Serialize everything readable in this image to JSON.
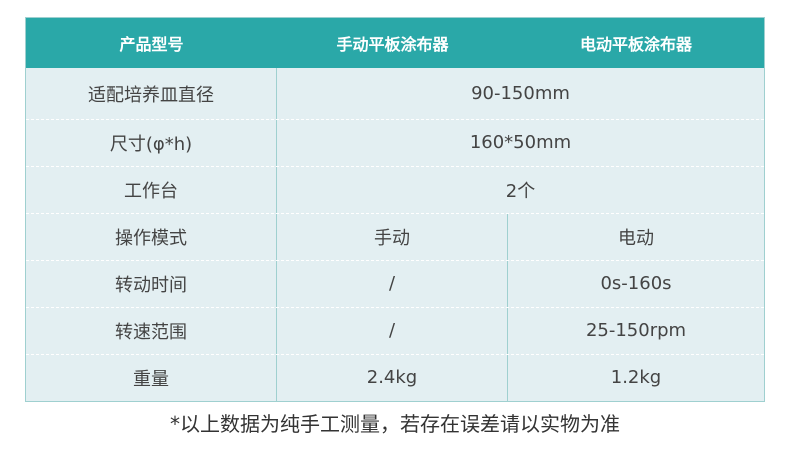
{
  "header": [
    "产品型号",
    "手动平板涂布器",
    "电动平板涂布器"
  ],
  "rows": [
    {
      "label": "适配培养皿直径",
      "merged": "90-150mm"
    },
    {
      "label": "尺寸(φ*h)",
      "merged": "160*50mm"
    },
    {
      "label": "工作台",
      "merged": "2个"
    },
    {
      "label": "操作模式",
      "manual": "手动",
      "electric": "电动"
    },
    {
      "label": "转动时间",
      "manual": "/",
      "electric": "0s-160s"
    },
    {
      "label": "转速范围",
      "manual": "/",
      "electric": "25-150rpm"
    },
    {
      "label": "重量",
      "manual": "2.4kg",
      "electric": "1.2kg"
    }
  ],
  "footnote": "*以上数据为纯手工测量，若存在误差请以实物为准",
  "colors": {
    "header": "#2aa8a8",
    "body": "#e3eff2"
  }
}
